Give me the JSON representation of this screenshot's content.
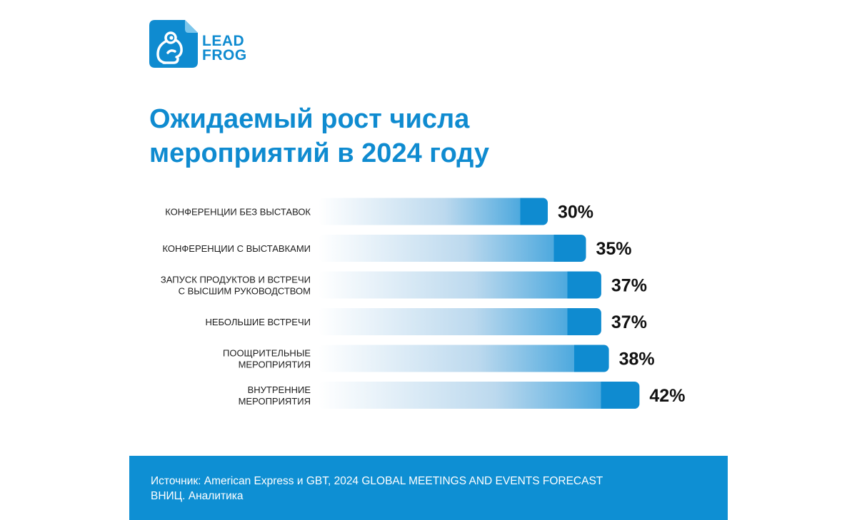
{
  "brand": {
    "logo_line1": "LEAD",
    "logo_line2": "FROG",
    "color": "#0f8bd0"
  },
  "title": {
    "line1": "Ожидаемый рост числа",
    "line2": "мероприятий в 2024 году"
  },
  "chart_data": {
    "type": "bar",
    "orientation": "horizontal",
    "title": "Ожидаемый рост числа мероприятий в 2024 году",
    "categories": [
      [
        "КОНФЕРЕНЦИИ БЕЗ ВЫСТАВОК"
      ],
      [
        "КОНФЕРЕНЦИИ С ВЫСТАВКАМИ"
      ],
      [
        "ЗАПУСК ПРОДУКТОВ И ВСТРЕЧИ",
        "С ВЫСШИМ РУКОВОДСТВОМ"
      ],
      [
        "НЕБОЛЬШИЕ ВСТРЕЧИ"
      ],
      [
        "ПООЩРИТЕЛЬНЫЕ",
        "МЕРОПРИЯТИЯ"
      ],
      [
        "ВНУТРЕННИЕ",
        "МЕРОПРИЯТИЯ"
      ]
    ],
    "values": [
      30,
      35,
      37,
      37,
      38,
      42
    ],
    "value_labels": [
      "30%",
      "35%",
      "37%",
      "37%",
      "38%",
      "42%"
    ],
    "unit": "%",
    "bar_color": "#0f8bd0",
    "xlabel": "",
    "ylabel": "",
    "grid": false,
    "legend": "none"
  },
  "footer": {
    "line1": "Источник: American Express и GBT, 2024 GLOBAL MEETINGS AND EVENTS FORECAST",
    "line2": "ВНИЦ. Аналитика",
    "background": "#0e8fd3"
  }
}
